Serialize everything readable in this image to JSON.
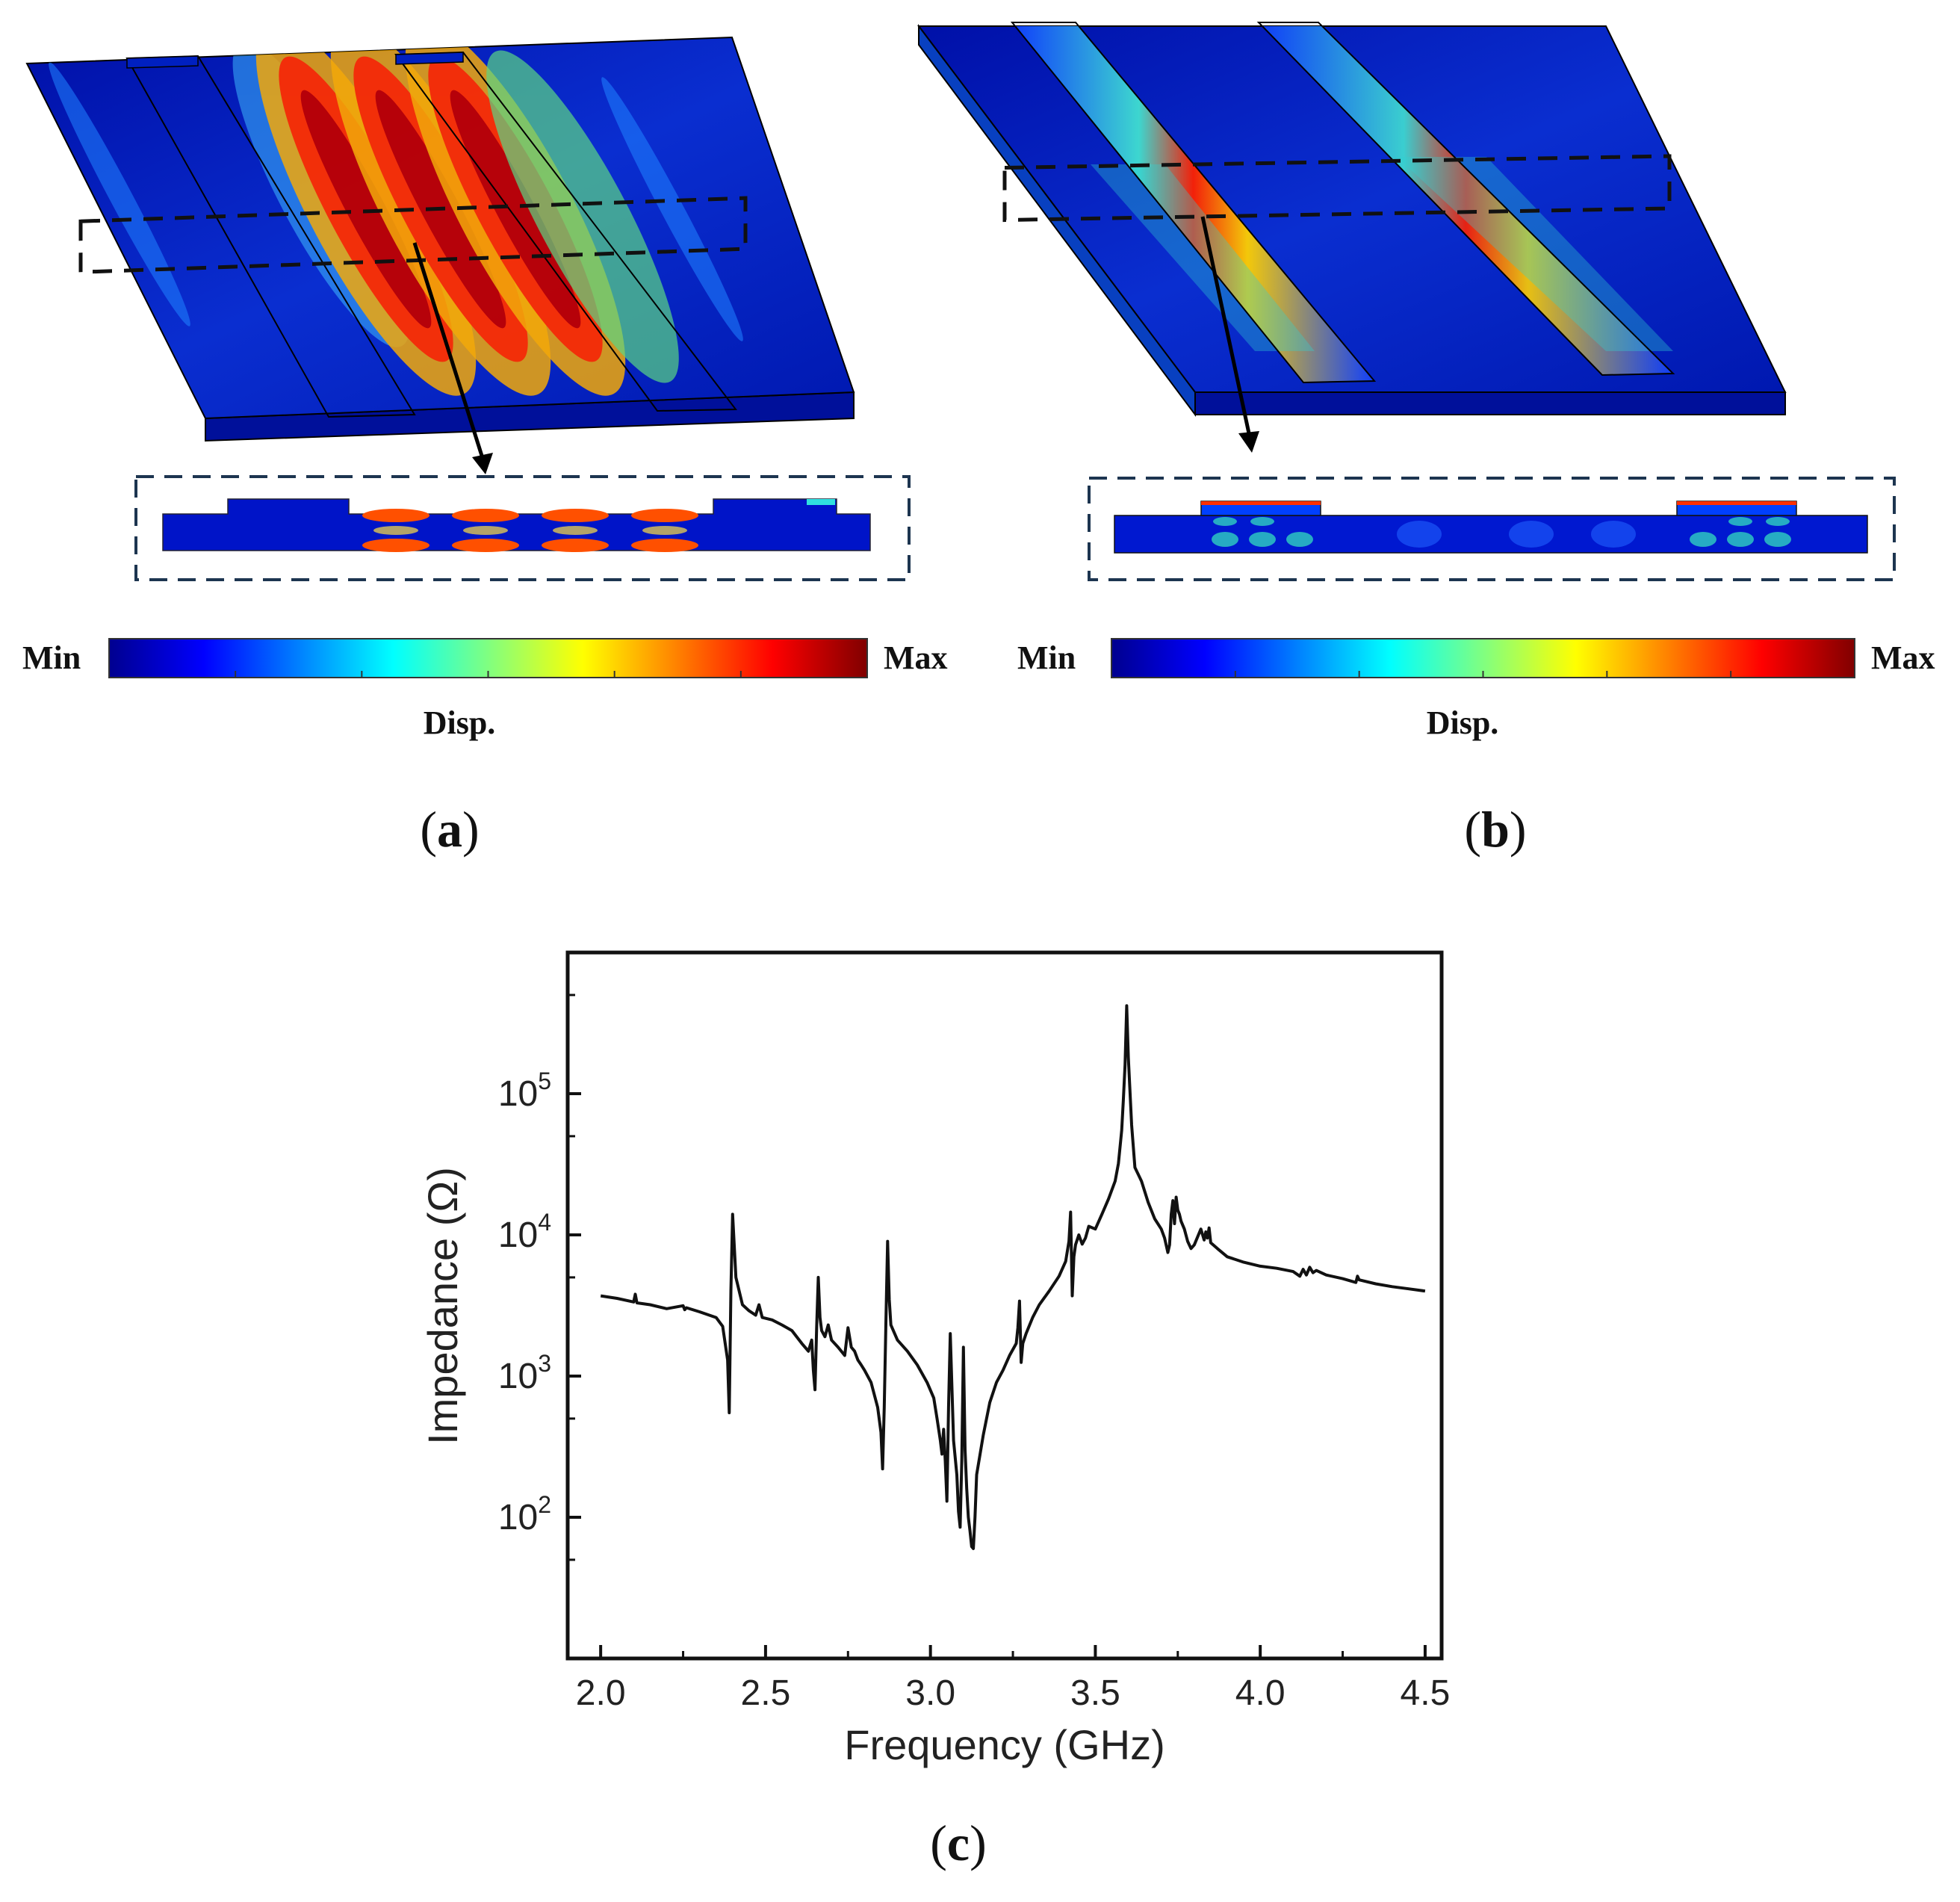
{
  "panels": {
    "a": {
      "label": "a",
      "colorbar": {
        "min_label": "Min",
        "max_label": "Max",
        "quantity_label": "Disp."
      }
    },
    "b": {
      "label": "b",
      "colorbar": {
        "min_label": "Min",
        "max_label": "Max",
        "quantity_label": "Disp."
      }
    },
    "c": {
      "label": "c"
    }
  },
  "colormap": [
    "#00008f",
    "#0000ff",
    "#0080ff",
    "#00ffff",
    "#80ff80",
    "#ffff00",
    "#ff8000",
    "#ff0000",
    "#800000"
  ],
  "chart_data": {
    "type": "line",
    "title": "",
    "xlabel": "Frequency (GHz)",
    "ylabel": "Impedance (Ω)",
    "xlim": [
      1.9,
      4.55
    ],
    "ylim": [
      10.0,
      1000000.0
    ],
    "yscale": "log",
    "xticks": [
      2.0,
      2.5,
      3.0,
      3.5,
      4.0,
      4.5
    ],
    "xtick_labels": [
      "2.0",
      "2.5",
      "3.0",
      "3.5",
      "4.0",
      "4.5"
    ],
    "yticks": [
      100,
      1000,
      10000,
      100000
    ],
    "ytick_labels": [
      {
        "base": "10",
        "exp": "2"
      },
      {
        "base": "10",
        "exp": "3"
      },
      {
        "base": "10",
        "exp": "4"
      },
      {
        "base": "10",
        "exp": "5"
      }
    ],
    "line_color": "#111111",
    "series": [
      {
        "name": "Impedance",
        "x": [
          2.0,
          2.05,
          2.1,
          2.105,
          2.11,
          2.15,
          2.2,
          2.25,
          2.255,
          2.26,
          2.3,
          2.35,
          2.37,
          2.385,
          2.39,
          2.395,
          2.4,
          2.41,
          2.43,
          2.45,
          2.47,
          2.48,
          2.49,
          2.52,
          2.55,
          2.58,
          2.61,
          2.63,
          2.64,
          2.645,
          2.65,
          2.655,
          2.66,
          2.665,
          2.67,
          2.68,
          2.69,
          2.7,
          2.72,
          2.74,
          2.75,
          2.76,
          2.77,
          2.78,
          2.79,
          2.8,
          2.82,
          2.84,
          2.85,
          2.855,
          2.86,
          2.865,
          2.87,
          2.875,
          2.88,
          2.9,
          2.93,
          2.96,
          2.99,
          3.01,
          3.02,
          3.03,
          3.035,
          3.04,
          3.045,
          3.05,
          3.055,
          3.06,
          3.07,
          3.08,
          3.085,
          3.09,
          3.095,
          3.1,
          3.105,
          3.11,
          3.115,
          3.12,
          3.125,
          3.13,
          3.135,
          3.14,
          3.16,
          3.18,
          3.2,
          3.22,
          3.24,
          3.26,
          3.265,
          3.27,
          3.275,
          3.28,
          3.29,
          3.31,
          3.33,
          3.36,
          3.39,
          3.41,
          3.42,
          3.425,
          3.43,
          3.435,
          3.44,
          3.45,
          3.46,
          3.47,
          3.48,
          3.5,
          3.52,
          3.54,
          3.56,
          3.57,
          3.58,
          3.585,
          3.59,
          3.595,
          3.6,
          3.61,
          3.62,
          3.64,
          3.66,
          3.68,
          3.7,
          3.71,
          3.72,
          3.725,
          3.73,
          3.735,
          3.74,
          3.745,
          3.75,
          3.755,
          3.76,
          3.77,
          3.78,
          3.79,
          3.8,
          3.82,
          3.83,
          3.835,
          3.84,
          3.845,
          3.85,
          3.87,
          3.9,
          3.95,
          4.0,
          4.05,
          4.1,
          4.12,
          4.13,
          4.14,
          4.15,
          4.16,
          4.17,
          4.2,
          4.25,
          4.29,
          4.295,
          4.3,
          4.35,
          4.4,
          4.45,
          4.5
        ],
        "y": [
          3700,
          3550,
          3350,
          3800,
          3300,
          3200,
          3000,
          3150,
          2950,
          3050,
          2850,
          2600,
          2250,
          1300,
          550,
          4000,
          14000,
          5000,
          3200,
          2900,
          2700,
          3200,
          2600,
          2500,
          2300,
          2100,
          1700,
          1500,
          1800,
          1100,
          800,
          2200,
          5000,
          2600,
          2100,
          1900,
          2300,
          1800,
          1600,
          1400,
          2200,
          1600,
          1500,
          1300,
          1200,
          1100,
          900,
          600,
          400,
          220,
          600,
          2500,
          9000,
          3500,
          2300,
          1800,
          1500,
          1200,
          900,
          700,
          500,
          350,
          280,
          420,
          250,
          130,
          600,
          2000,
          350,
          200,
          110,
          85,
          250,
          1600,
          300,
          160,
          100,
          80,
          62,
          60,
          100,
          200,
          380,
          650,
          900,
          1100,
          1400,
          1700,
          2200,
          3400,
          1250,
          1700,
          2000,
          2600,
          3200,
          4000,
          5100,
          6500,
          9000,
          14500,
          3700,
          7000,
          8500,
          10000,
          8600,
          9500,
          11500,
          11000,
          14000,
          18000,
          24000,
          32000,
          55000,
          90000,
          160000,
          420000,
          180000,
          60000,
          30000,
          24000,
          17000,
          13000,
          11000,
          9500,
          7500,
          8500,
          14000,
          17500,
          12000,
          18500,
          15000,
          14000,
          12500,
          11000,
          9000,
          8000,
          8500,
          11000,
          9200,
          10500,
          9500,
          11200,
          8800,
          8000,
          7000,
          6400,
          6000,
          5800,
          5500,
          5100,
          5700,
          5200,
          5900,
          5400,
          5600,
          5200,
          4900,
          4600,
          5100,
          4800,
          4500,
          4300,
          4150,
          4000
        ]
      }
    ]
  }
}
